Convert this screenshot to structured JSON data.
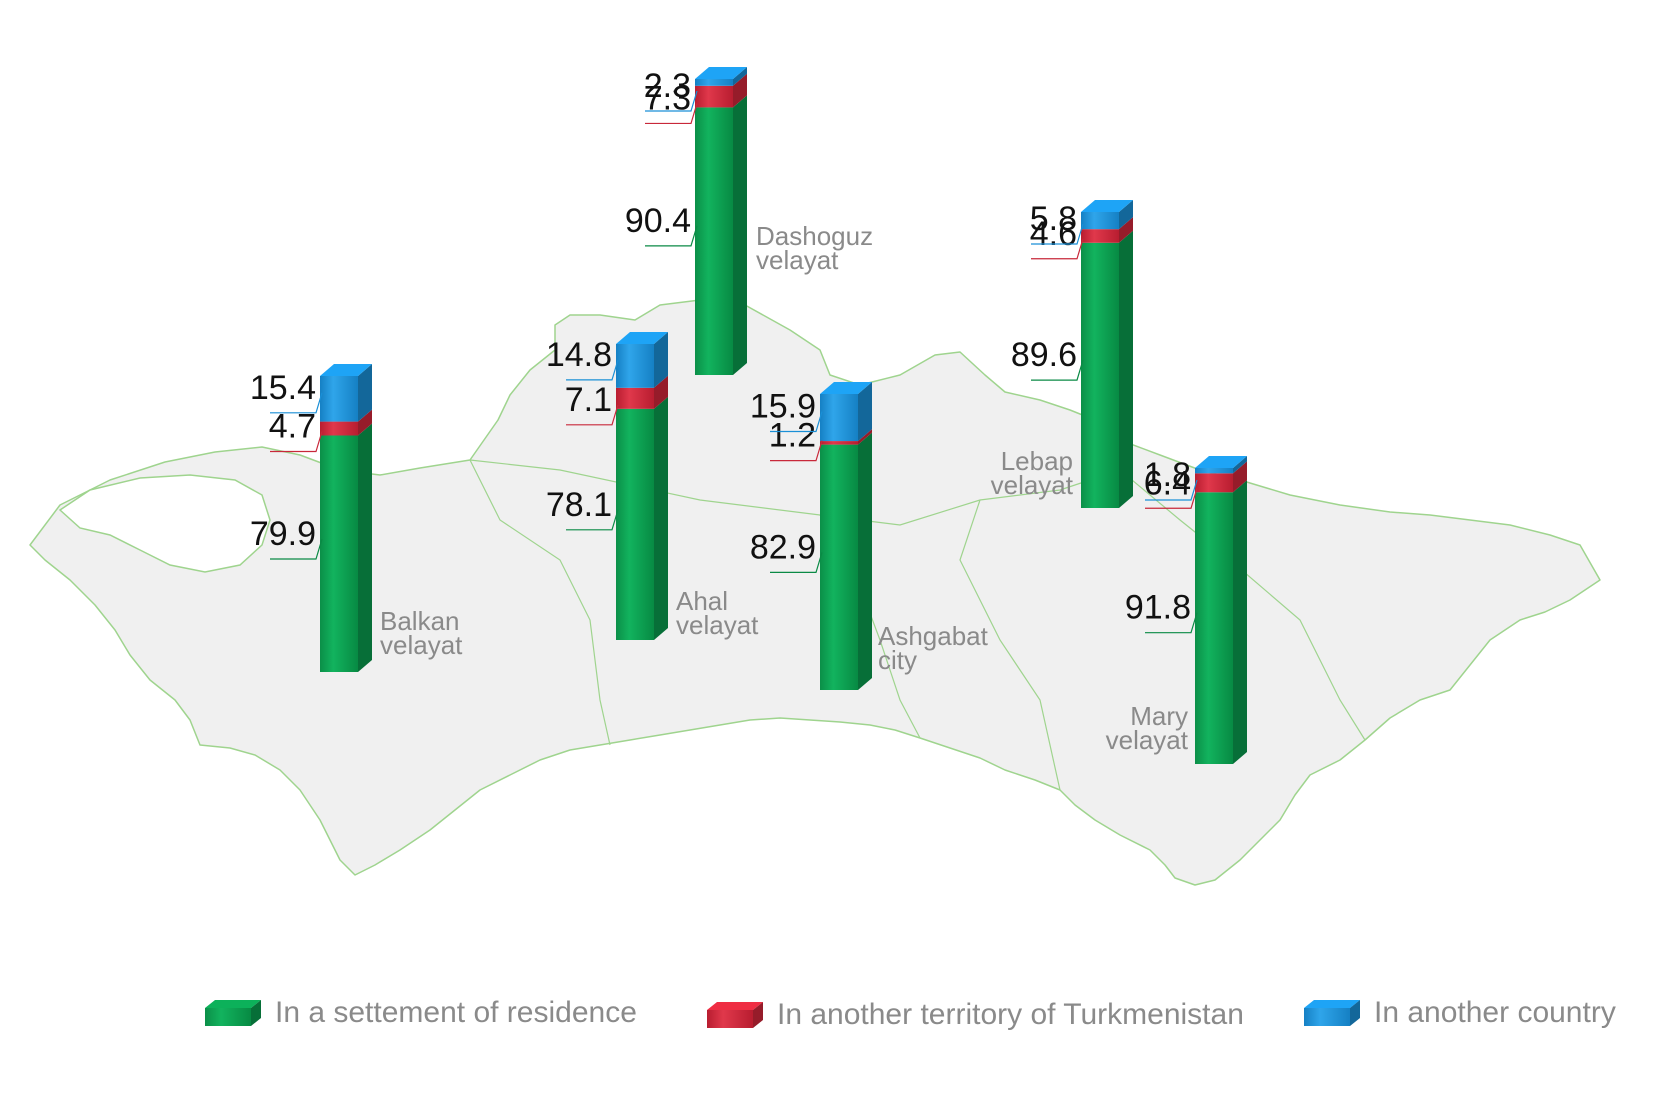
{
  "chart_data": {
    "type": "bar",
    "stacked": true,
    "colors": {
      "residence": "#0a9a4e",
      "territory": "#d0273a",
      "country": "#1a8fd6"
    },
    "legend": [
      {
        "key": "residence",
        "label": "In a settement of residence"
      },
      {
        "key": "territory",
        "label": "In another territory of Turkmenistan"
      },
      {
        "key": "country",
        "label": "In another country"
      }
    ],
    "legend_position": "bottom",
    "categories": [
      {
        "name": "Balkan",
        "name2": "velayat",
        "residence": 79.9,
        "territory": 4.7,
        "country": 15.4
      },
      {
        "name": "Ahal",
        "name2": "velayat",
        "residence": 78.1,
        "territory": 7.1,
        "country": 14.8
      },
      {
        "name": "Dashoguz",
        "name2": "velayat",
        "residence": 90.4,
        "territory": 7.3,
        "country": 2.3
      },
      {
        "name": "Ashgabat",
        "name2": "city",
        "residence": 82.9,
        "territory": 1.2,
        "country": 15.9
      },
      {
        "name": "Lebap",
        "name2": "velayat",
        "residence": 89.6,
        "territory": 4.6,
        "country": 5.8
      },
      {
        "name": "Mary",
        "name2": "velayat",
        "residence": 91.8,
        "territory": 6.4,
        "country": 1.8
      }
    ],
    "background": "map of Turkmenistan"
  }
}
